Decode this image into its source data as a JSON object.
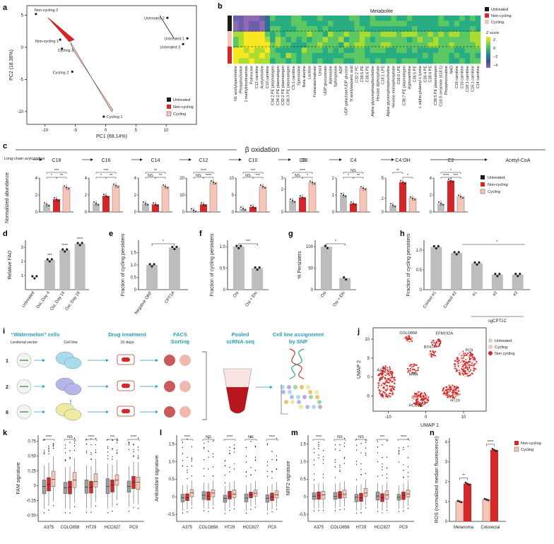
{
  "colors": {
    "untreated": "#1a1a1a",
    "noncycling": "#d62728",
    "cycling": "#f7c6b8",
    "bar_gray": "#bdbdbd",
    "teal": "#2a9db5"
  },
  "panel_a": {
    "label": "a",
    "xlabel": "PC1 (68.14%)",
    "ylabel": "PC2 (18.36%)",
    "xticks": [
      "-10",
      "-5",
      "0",
      "5",
      "10"
    ],
    "yticks": [
      "5",
      "0",
      "-5",
      "-10"
    ],
    "points": [
      {
        "name": "Non-cycling 2",
        "x": -11.5,
        "y": 5.2
      },
      {
        "name": "Non-cycling 1",
        "x": -7.5,
        "y": 1.2
      },
      {
        "name": "Cycling 3",
        "x": -7.2,
        "y": -0.2
      },
      {
        "name": "Cycling 2",
        "x": -5.5,
        "y": -3.8
      },
      {
        "name": "Cycling 1",
        "x": -0.3,
        "y": -10.8
      },
      {
        "name": "Untreated 2",
        "x": 10.2,
        "y": 4.6
      },
      {
        "name": "Untreated 1",
        "x": 13.5,
        "y": 1.4
      },
      {
        "name": "Untreated 3",
        "x": 12.8,
        "y": 0.5
      }
    ],
    "legend": [
      "Untreated",
      "Non-cycling",
      "Cycling"
    ]
  },
  "panel_b": {
    "label": "b",
    "title": "Metabolite",
    "legend": [
      "Untreated",
      "Non-cycling",
      "Cycling"
    ],
    "zlabel": "Z score",
    "zticks": [
      "2",
      "0",
      "−2",
      "−4"
    ],
    "metabolites": [
      "N1 acetylspermidine",
      "Phosphocholine",
      "1 methylnicotinamide",
      "Putrescine",
      "C12 carnitine",
      "Acetylcholine",
      "C10 carnitine",
      "C34:2 PE plasmalogen",
      "C34:2 PE plasmalogen",
      "C32:2 PE plasmalogen",
      "C36:3 PE plasmalogen",
      "C5:1 carnitine",
      "Spermidine",
      "Beta alanine",
      "Lactose",
      "Fumarate/maleate",
      "Uracil",
      "UDP glucuronate",
      "Adenosine",
      "Sphingosine",
      "ADP",
      "UDP galactose/UDP glucose",
      "N acetylaspartic acid",
      "C32:2 PC",
      "C38:5 PE",
      "C38:6 PE",
      "Alpha glycerophosphocholine",
      "Hexose diphosphate",
      "C18:1 LPE",
      "Alpha glycerophosphocholine",
      "Hexose monophosphate",
      "C16:0 LPE",
      "C38:7 PE plasmalogen",
      "Hypoxanthine",
      "C36:5 PE",
      "L alpha glutamyl L lysine",
      "C36:4 PE",
      "C38:4 PE",
      "C38:5 PE plasmalogen",
      "C16:0 ceramide (d18:1)",
      "Phosphocreatine",
      "NAD",
      "C18 carnitine",
      "C16 carnitine",
      "C18:1 carnitine",
      "C16:1 carnitine",
      "C14 carnitine"
    ]
  },
  "panel_c": {
    "label": "c",
    "title": "β oxidation",
    "left_label": "Long-chain acylcanitine",
    "ylabel": "Normalized abundance",
    "end_label": "Acetyl-CoA",
    "mid_label": "C8",
    "legend": [
      "Untreated",
      "Non-cycling",
      "Cycling"
    ],
    "charts": [
      {
        "name": "C18",
        "yticks": [
          "0",
          "2",
          "4"
        ],
        "ymax": 4,
        "values": [
          0.9,
          1.5,
          2.9
        ],
        "sig": [
          "***",
          "*",
          "**"
        ]
      },
      {
        "name": "C16",
        "yticks": [
          "0",
          "2",
          "4"
        ],
        "ymax": 4,
        "values": [
          1.0,
          1.9,
          3.1
        ],
        "sig": [
          "***",
          "*",
          "**"
        ]
      },
      {
        "name": "C14",
        "yticks": [
          "0",
          "2",
          "4"
        ],
        "ymax": 4,
        "values": [
          1.0,
          0.9,
          3.0
        ],
        "sig": [
          "**",
          "NS",
          "**"
        ]
      },
      {
        "name": "C12",
        "yticks": [
          "0",
          "10",
          "20"
        ],
        "ymax": 20,
        "values": [
          1.0,
          4.5,
          17.5
        ],
        "sig": [
          "****",
          "NS",
          "****"
        ]
      },
      {
        "name": "C10",
        "yticks": [
          "0",
          "5",
          "10"
        ],
        "ymax": 10,
        "values": [
          1.0,
          1.5,
          7.5
        ],
        "sig": [
          "***",
          "NS",
          "***"
        ]
      },
      {
        "name": "C6",
        "yticks": [
          "0",
          "2",
          "3"
        ],
        "ymax": 3,
        "values": [
          1.0,
          1.3,
          2.6
        ],
        "sig": [
          "****",
          "NS",
          "*"
        ]
      },
      {
        "name": "C4",
        "yticks": [
          "0",
          "1",
          "2"
        ],
        "ymax": 2,
        "values": [
          1.0,
          0.5,
          1.4
        ],
        "sig": [
          "NS",
          "*",
          "**"
        ]
      },
      {
        "name": "C4:OH",
        "yticks": [
          "0",
          "2",
          "5"
        ],
        "ymax": 5,
        "values": [
          1.0,
          4.4,
          2.0
        ],
        "sig": [
          "**",
          "*"
        ]
      },
      {
        "name": "C2",
        "yticks": [
          "0",
          "2",
          "4"
        ],
        "ymax": 4,
        "values": [
          1.0,
          3.7,
          1.8
        ],
        "sig": [
          "*",
          "****",
          "***"
        ]
      }
    ]
  },
  "panel_d": {
    "label": "d",
    "ylabel": "Relative FAO",
    "yticks": [
      "1",
      "2",
      "3"
    ],
    "categories": [
      "Untreated",
      "Osi, Day 4",
      "Osi, Day 16",
      "Osi, Day 18"
    ],
    "values": [
      0.9,
      2.1,
      2.8,
      3.25
    ],
    "sig": [
      "",
      "***",
      "****",
      "****"
    ]
  },
  "panel_e": {
    "label": "e",
    "ylabel": "Fraction of cycling persisters",
    "yticks": [
      "0",
      "0.5",
      "1.0",
      "1.5"
    ],
    "categories": [
      "Negative ORF",
      "CPT1A"
    ],
    "values": [
      1.0,
      1.7
    ],
    "sig": "*"
  },
  "panel_f": {
    "label": "f",
    "ylabel": "Fraction of cycling persisters",
    "yticks": [
      "0",
      "0.5",
      "1.0"
    ],
    "categories": [
      "Osi",
      "Osi + Eto"
    ],
    "values": [
      1.0,
      0.5
    ],
    "sig": "***"
  },
  "panel_g": {
    "label": "g",
    "ylabel": "% Persisters",
    "yticks": [
      "0",
      "50",
      "100"
    ],
    "categories": [
      "Osi",
      "Osi + Eto"
    ],
    "values": [
      100,
      27
    ],
    "sig": "*"
  },
  "panel_h": {
    "label": "h",
    "ylabel": "Fraction of cycling persisters",
    "yticks": [
      "0",
      "0.5",
      "1.0"
    ],
    "categories": [
      "Control #1",
      "Control #2",
      "#1",
      "#2",
      "#3"
    ],
    "group_label": "sgCPT1C",
    "values": [
      1.08,
      0.93,
      0.67,
      0.38,
      0.38
    ],
    "sig": "*"
  },
  "panel_i": {
    "label": "i",
    "step1_title": "“Watermelon” cells",
    "step1_sub1": "Lentiviral vector",
    "step1_sub2": "Cell line",
    "step2_title": "Drug treatment",
    "step2_sub": "10 days",
    "step3_title": "FACS",
    "step3_title2": "Sorting",
    "step4_title": "Pooled",
    "step4_title2": "scRNA-seq",
    "step5_title": "Cell line assignemnt",
    "step5_title2": "by SNP",
    "rows": [
      "1",
      "2",
      "8"
    ]
  },
  "panel_j": {
    "label": "j",
    "xlabel": "UMAP 1",
    "ylabel": "UMAP 2",
    "xticks": [
      "-10",
      "0",
      "10"
    ],
    "yticks": [
      "10",
      "5",
      "0",
      "-5"
    ],
    "legend": [
      "Untreated",
      "Cycling",
      "Non cycling"
    ],
    "clusters": [
      "COLO858",
      "EFM192A",
      "BT474",
      "PC9",
      "A375",
      "MMA",
      "HCC827",
      "HT29"
    ]
  },
  "panel_k": {
    "label": "k",
    "ylabel": "FAM signature",
    "yticks": [
      "0.75",
      "0.50",
      "0.25",
      "0",
      "-0.25",
      "-0.50"
    ],
    "categories": [
      "A375",
      "COLO858",
      "HT29",
      "HCC827",
      "PC9"
    ],
    "sig": [
      "****",
      "NS",
      "****",
      "***",
      "****"
    ]
  },
  "panel_l": {
    "label": "l",
    "ylabel": "Antioxidant signature",
    "yticks": [
      "1.5",
      "1.0",
      "0.5",
      "0",
      "-0.5"
    ],
    "categories": [
      "A375",
      "COLO858",
      "HT29",
      "HCC827",
      "PC9"
    ],
    "sig": [
      "****",
      "NS",
      "****",
      "NS",
      "****"
    ]
  },
  "panel_m": {
    "label": "m",
    "ylabel": "NRF2 signature",
    "yticks": [
      "1.5",
      "1.0",
      "0.5",
      "0",
      "-0.5"
    ],
    "categories": [
      "A375",
      "COLO858",
      "HT29",
      "HCC827",
      "PC9"
    ],
    "sig": [
      "****",
      "NS",
      "NS",
      "***",
      "****"
    ]
  },
  "panel_n": {
    "label": "n",
    "ylabel": "ROS (normalized median fluorescence)",
    "yticks": [
      "0",
      "1",
      "2",
      "3",
      "4"
    ],
    "categories": [
      "Melanoma",
      "Colorectal"
    ],
    "legend": [
      "Non-cycling",
      "Cycling"
    ],
    "cycling": [
      1.0,
      1.1
    ],
    "noncycling": [
      1.9,
      3.6
    ],
    "sig": [
      "**",
      "****"
    ]
  },
  "chart_data": [
    {
      "type": "scatter",
      "xlabel": "PC1 (68.14%)",
      "ylabel": "PC2 (18.36%)",
      "x": [
        -11.5,
        -7.5,
        -7.2,
        -5.5,
        -0.3,
        10.2,
        13.5,
        12.8
      ],
      "y": [
        5.2,
        1.2,
        -0.2,
        -3.8,
        -10.8,
        4.6,
        1.4,
        0.5
      ],
      "labels": [
        "Non-cycling 2",
        "Non-cycling 1",
        "Cycling 3",
        "Cycling 2",
        "Cycling 1",
        "Untreated 2",
        "Untreated 1",
        "Untreated 3"
      ]
    },
    {
      "type": "bar",
      "title": "C18",
      "categories": [
        "Untreated",
        "Non-cycling",
        "Cycling"
      ],
      "values": [
        0.9,
        1.5,
        2.9
      ]
    },
    {
      "type": "bar",
      "title": "C16",
      "categories": [
        "Untreated",
        "Non-cycling",
        "Cycling"
      ],
      "values": [
        1.0,
        1.9,
        3.1
      ]
    },
    {
      "type": "bar",
      "title": "C14",
      "categories": [
        "Untreated",
        "Non-cycling",
        "Cycling"
      ],
      "values": [
        1.0,
        0.9,
        3.0
      ]
    },
    {
      "type": "bar",
      "title": "C12",
      "categories": [
        "Untreated",
        "Non-cycling",
        "Cycling"
      ],
      "values": [
        1.0,
        4.5,
        17.5
      ]
    },
    {
      "type": "bar",
      "title": "C10",
      "categories": [
        "Untreated",
        "Non-cycling",
        "Cycling"
      ],
      "values": [
        1.0,
        1.5,
        7.5
      ]
    },
    {
      "type": "bar",
      "title": "C6",
      "categories": [
        "Untreated",
        "Non-cycling",
        "Cycling"
      ],
      "values": [
        1.0,
        1.3,
        2.6
      ]
    },
    {
      "type": "bar",
      "title": "C4",
      "categories": [
        "Untreated",
        "Non-cycling",
        "Cycling"
      ],
      "values": [
        1.0,
        0.5,
        1.4
      ]
    },
    {
      "type": "bar",
      "title": "C4:OH",
      "categories": [
        "Untreated",
        "Non-cycling",
        "Cycling"
      ],
      "values": [
        1.0,
        4.4,
        2.0
      ]
    },
    {
      "type": "bar",
      "title": "C2",
      "categories": [
        "Untreated",
        "Non-cycling",
        "Cycling"
      ],
      "values": [
        1.0,
        3.7,
        1.8
      ]
    },
    {
      "type": "bar",
      "ylabel": "Relative FAO",
      "categories": [
        "Untreated",
        "Osi, Day 4",
        "Osi, Day 16",
        "Osi, Day 18"
      ],
      "values": [
        0.9,
        2.1,
        2.8,
        3.25
      ]
    },
    {
      "type": "bar",
      "ylabel": "Fraction of cycling persisters",
      "categories": [
        "Negative ORF",
        "CPT1A"
      ],
      "values": [
        1.0,
        1.7
      ]
    },
    {
      "type": "bar",
      "ylabel": "Fraction of cycling persisters",
      "categories": [
        "Osi",
        "Osi + Eto"
      ],
      "values": [
        1.0,
        0.5
      ]
    },
    {
      "type": "bar",
      "ylabel": "% Persisters",
      "categories": [
        "Osi",
        "Osi + Eto"
      ],
      "values": [
        100,
        27
      ]
    },
    {
      "type": "bar",
      "ylabel": "Fraction of cycling persisters",
      "categories": [
        "Control #1",
        "Control #2",
        "#1",
        "#2",
        "#3"
      ],
      "values": [
        1.08,
        0.93,
        0.67,
        0.38,
        0.38
      ]
    },
    {
      "type": "bar",
      "ylabel": "ROS (normalized median fluorescence)",
      "categories": [
        "Melanoma",
        "Colorectal"
      ],
      "series": [
        {
          "name": "Cycling",
          "values": [
            1.0,
            1.1
          ]
        },
        {
          "name": "Non-cycling",
          "values": [
            1.9,
            3.6
          ]
        }
      ]
    }
  ]
}
